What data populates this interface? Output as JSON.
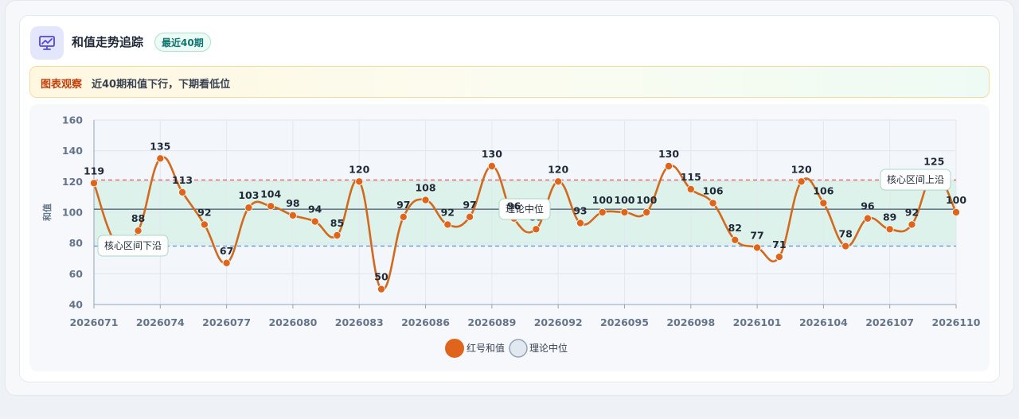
{
  "header": {
    "icon": "chart-presentation-icon",
    "title": "和值走势追踪",
    "badge": "最近40期"
  },
  "observation": {
    "label": "图表观察",
    "text": "近40期和值下行，下期看低位"
  },
  "colors": {
    "series": "#e0651c",
    "line": "#d2691e",
    "median_line": "#475569",
    "upper_line": "#e05858",
    "lower_line": "#5b8ee0",
    "band": "#d5f0e4"
  },
  "chart_data": {
    "type": "line",
    "x_tick_labels": [
      "2026071",
      "2026074",
      "2026077",
      "2026080",
      "2026083",
      "2026086",
      "2026089",
      "2026092",
      "2026095",
      "2026098",
      "2026101",
      "2026104",
      "2026107",
      "2026110"
    ],
    "y_ticks": [
      40,
      60,
      80,
      100,
      120,
      140,
      160
    ],
    "ylim": [
      40,
      160
    ],
    "ylabel": "和值",
    "xlabel": "",
    "grid": true,
    "legend_position": "bottom-center",
    "series": [
      {
        "name": "红号和值",
        "x": [
          "2026071",
          "2026072",
          "2026073",
          "2026074",
          "2026075",
          "2026076",
          "2026077",
          "2026078",
          "2026079",
          "2026080",
          "2026081",
          "2026082",
          "2026083",
          "2026084",
          "2026085",
          "2026086",
          "2026087",
          "2026088",
          "2026089",
          "2026090",
          "2026091",
          "2026092",
          "2026093",
          "2026094",
          "2026095",
          "2026096",
          "2026097",
          "2026098",
          "2026099",
          "2026100",
          "2026101",
          "2026102",
          "2026103",
          "2026104",
          "2026105",
          "2026106",
          "2026107",
          "2026108",
          "2026109",
          "2026110"
        ],
        "values": [
          119,
          80,
          88,
          135,
          113,
          92,
          67,
          103,
          104,
          98,
          94,
          85,
          120,
          50,
          97,
          108,
          92,
          97,
          130,
          96,
          89,
          120,
          93,
          100,
          100,
          100,
          130,
          115,
          106,
          82,
          77,
          71,
          120,
          106,
          78,
          96,
          89,
          92,
          125,
          100
        ]
      }
    ],
    "reference_lines": [
      {
        "name": "理论中位",
        "value": 102
      },
      {
        "name": "核心区间上沿",
        "value": 121
      },
      {
        "name": "核心区间下沿",
        "value": 78
      }
    ],
    "annotations": {
      "upper": "核心区间上沿",
      "lower": "核心区间下沿",
      "median": "理论中位"
    },
    "legend": [
      "红号和值",
      "理论中位"
    ]
  }
}
